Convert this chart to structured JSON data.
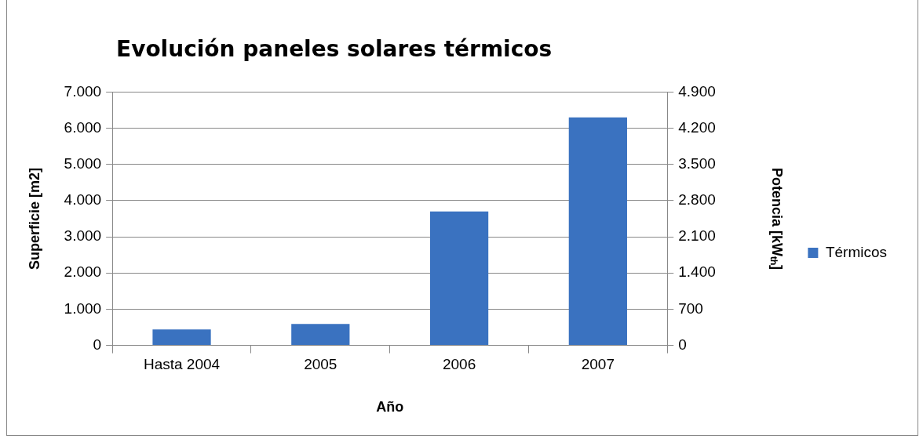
{
  "chart_data": {
    "type": "bar",
    "title": "Evolución paneles solares térmicos",
    "xlabel": "Año",
    "ylabel": "Superficie [m2]",
    "y2label": "Potencia [kWₜₕ]",
    "categories": [
      "Hasta 2004",
      "2005",
      "2006",
      "2007"
    ],
    "series": [
      {
        "name": "Térmicos",
        "color": "#3a72c0",
        "values": [
          440,
          590,
          3700,
          6300
        ]
      }
    ],
    "ylim": [
      0,
      7000
    ],
    "yticks": [
      {
        "value": 0,
        "label": "0"
      },
      {
        "value": 1000,
        "label": "1.000"
      },
      {
        "value": 2000,
        "label": "2.000"
      },
      {
        "value": 3000,
        "label": "3.000"
      },
      {
        "value": 4000,
        "label": "4.000"
      },
      {
        "value": 5000,
        "label": "5.000"
      },
      {
        "value": 6000,
        "label": "6.000"
      },
      {
        "value": 7000,
        "label": "7.000"
      }
    ],
    "y2lim": [
      0,
      4900
    ],
    "y2ticks": [
      {
        "value": 0,
        "label": "0"
      },
      {
        "value": 700,
        "label": "700"
      },
      {
        "value": 1400,
        "label": "1.400"
      },
      {
        "value": 2100,
        "label": "2.100"
      },
      {
        "value": 2800,
        "label": "2.800"
      },
      {
        "value": 3500,
        "label": "3.500"
      },
      {
        "value": 4200,
        "label": "4.200"
      },
      {
        "value": 4900,
        "label": "4.900"
      }
    ],
    "grid": "y",
    "legend": "right"
  }
}
